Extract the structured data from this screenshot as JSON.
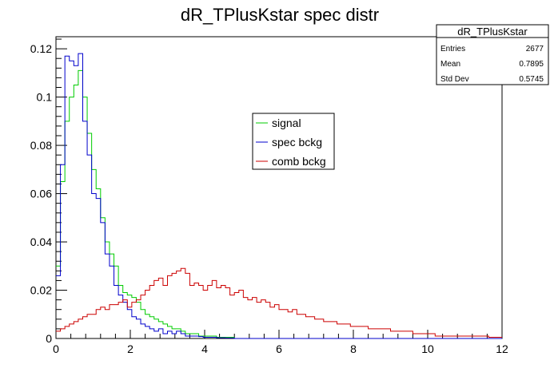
{
  "chart_data": {
    "type": "line",
    "title": "dR_TPlusKstar spec distr",
    "xlabel": "",
    "ylabel": "",
    "xlim": [
      0,
      12
    ],
    "ylim": [
      0,
      0.125
    ],
    "x_ticks": [
      "0",
      "2",
      "4",
      "6",
      "8",
      "10",
      "12"
    ],
    "y_ticks": [
      "0",
      "0.02",
      "0.04",
      "0.06",
      "0.08",
      "0.1",
      "0.12"
    ],
    "y_tick_values": [
      0,
      0.02,
      0.04,
      0.06,
      0.08,
      0.1,
      0.12
    ],
    "grid": false,
    "legend_position": "center-right",
    "bins": {
      "xmin": 0,
      "xmax": 12,
      "width": 0.12,
      "count": 100
    },
    "series": [
      {
        "name": "signal",
        "color": "#00cc00",
        "values": [
          0.03,
          0.065,
          0.09,
          0.1,
          0.105,
          0.111,
          0.1,
          0.085,
          0.07,
          0.062,
          0.05,
          0.04,
          0.035,
          0.03,
          0.022,
          0.019,
          0.018,
          0.017,
          0.015,
          0.012,
          0.01,
          0.009,
          0.008,
          0.007,
          0.006,
          0.005,
          0.004,
          0.004,
          0.003,
          0.002,
          0.002,
          0.002,
          0.001,
          0.001,
          0.001,
          0.001,
          0.0005,
          0.0005,
          0.0005,
          0.0005,
          0,
          0,
          0,
          0,
          0,
          0,
          0,
          0,
          0,
          0,
          0,
          0,
          0,
          0,
          0,
          0,
          0,
          0,
          0,
          0,
          0,
          0,
          0,
          0,
          0,
          0,
          0,
          0,
          0,
          0,
          0,
          0,
          0,
          0,
          0,
          0,
          0,
          0,
          0,
          0,
          0,
          0,
          0,
          0,
          0,
          0,
          0,
          0,
          0,
          0,
          0,
          0,
          0,
          0,
          0,
          0,
          0,
          0,
          0,
          0
        ]
      },
      {
        "name": "spec bckg",
        "color": "#0000cc",
        "values": [
          0.026,
          0.072,
          0.117,
          0.115,
          0.113,
          0.118,
          0.09,
          0.076,
          0.06,
          0.058,
          0.048,
          0.035,
          0.03,
          0.022,
          0.018,
          0.015,
          0.012,
          0.009,
          0.008,
          0.006,
          0.005,
          0.004,
          0.003,
          0.004,
          0.002,
          0.003,
          0.002,
          0.003,
          0.002,
          0.001,
          0.001,
          0.001,
          0.0008,
          0.0005,
          0.0005,
          0.0005,
          0.0003,
          0.0003,
          0.0002,
          0.0002,
          0,
          0,
          0,
          0,
          0,
          0,
          0,
          0,
          0,
          0,
          0,
          0,
          0,
          0,
          0,
          0,
          0,
          0,
          0,
          0,
          0,
          0,
          0,
          0,
          0,
          0,
          0,
          0,
          0,
          0,
          0,
          0,
          0,
          0,
          0,
          0,
          0,
          0,
          0,
          0,
          0,
          0,
          0,
          0,
          0,
          0,
          0,
          0,
          0,
          0,
          0,
          0,
          0,
          0,
          0,
          0,
          0,
          0,
          0,
          0
        ]
      },
      {
        "name": "comb bckg",
        "color": "#cc0000",
        "values": [
          0.003,
          0.004,
          0.005,
          0.006,
          0.007,
          0.008,
          0.009,
          0.01,
          0.01,
          0.012,
          0.013,
          0.012,
          0.014,
          0.014,
          0.015,
          0.016,
          0.013,
          0.015,
          0.016,
          0.018,
          0.02,
          0.022,
          0.024,
          0.025,
          0.022,
          0.026,
          0.027,
          0.028,
          0.029,
          0.027,
          0.022,
          0.023,
          0.022,
          0.02,
          0.022,
          0.024,
          0.021,
          0.022,
          0.021,
          0.018,
          0.019,
          0.02,
          0.017,
          0.016,
          0.017,
          0.015,
          0.016,
          0.015,
          0.013,
          0.014,
          0.012,
          0.012,
          0.011,
          0.012,
          0.01,
          0.01,
          0.009,
          0.009,
          0.008,
          0.008,
          0.007,
          0.007,
          0.007,
          0.006,
          0.006,
          0.006,
          0.005,
          0.005,
          0.005,
          0.005,
          0.004,
          0.004,
          0.004,
          0.004,
          0.004,
          0.003,
          0.003,
          0.003,
          0.003,
          0.003,
          0.002,
          0.002,
          0.002,
          0.002,
          0.002,
          0.001,
          0.001,
          0.001,
          0.001,
          0.001,
          0.001,
          0.001,
          0.001,
          0.001,
          0.001,
          0.001,
          0.001,
          0.0005,
          0.0005,
          0.0005
        ]
      }
    ],
    "stats_box": {
      "title": "dR_TPlusKstar",
      "rows": [
        {
          "label": "Entries",
          "value": "2677"
        },
        {
          "label": "Mean",
          "value": "0.7895"
        },
        {
          "label": "Std Dev",
          "value": "0.5745"
        }
      ]
    }
  }
}
